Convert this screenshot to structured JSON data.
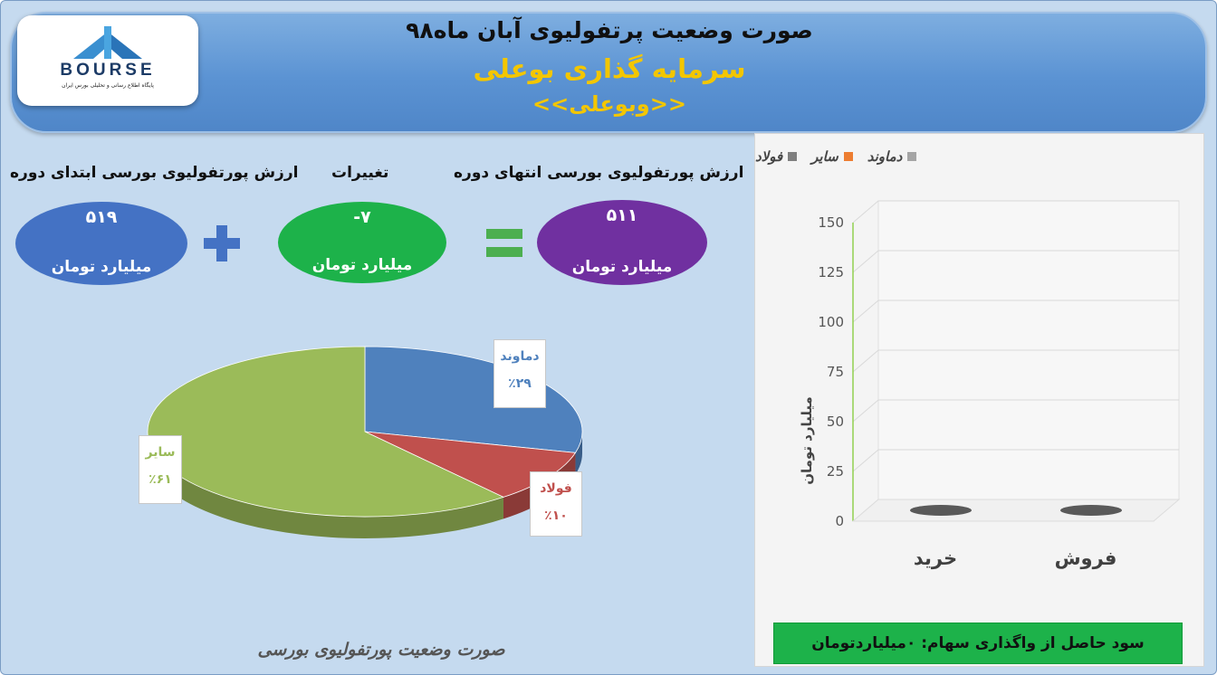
{
  "header": {
    "title": "صورت وضعیت پرتفولیوی آبان ماه۹۸",
    "subtitle": "سرمایه گذاری بوعلی",
    "ticker": "<<وبوعلی>>"
  },
  "logo": {
    "text": "BOURSE",
    "tagline": "پایگاه اطلاع رسانی و تحلیلی بورس ایران"
  },
  "summary": {
    "start": {
      "label": "ارزش پورتفولیوی بورسی ابتدای دوره",
      "value": "۵۱۹",
      "unit": "میلیارد تومان",
      "color": "#4472c4"
    },
    "change": {
      "label": "تغییرات",
      "value": "-۷",
      "unit": "میلیارد تومان",
      "color": "#1db24a"
    },
    "end": {
      "label": "ارزش پورتفولیوی بورسی انتهای دوره",
      "value": "۵۱۱",
      "unit": "میلیارد تومان",
      "color": "#7030a0"
    },
    "plus_icon": "plus-icon",
    "equals_icon": "equals-icon"
  },
  "pie_caption": "صورت وضعیت پورتفولیوی بورسی",
  "sale_profit": "سود حاصل از واگذاری سهام: ۰میلیاردتومان",
  "chart_data": [
    {
      "type": "pie",
      "categories": [
        "دماوند",
        "فولاد",
        "سایر"
      ],
      "values": [
        29,
        10,
        61
      ],
      "value_labels": [
        "٪۲۹",
        "٪۱۰",
        "٪۶۱"
      ],
      "colors": [
        "#4f81bd",
        "#c0504d",
        "#9bbb59"
      ]
    },
    {
      "type": "bar",
      "categories": [
        "خرید",
        "فروش"
      ],
      "series": [
        {
          "name": "دماوند",
          "values": [
            0,
            0
          ],
          "color": "#a5a5a5"
        },
        {
          "name": "سایر",
          "values": [
            0,
            0
          ],
          "color": "#ed7d31"
        },
        {
          "name": "فولاد",
          "values": [
            0,
            0
          ],
          "color": "#7f7f7f"
        }
      ],
      "ylabel": "میلیارد تومان",
      "ylim": [
        0,
        150
      ],
      "yticks": [
        0,
        25,
        50,
        75,
        100,
        125,
        150
      ],
      "grid": true,
      "legend_position": "top"
    }
  ]
}
